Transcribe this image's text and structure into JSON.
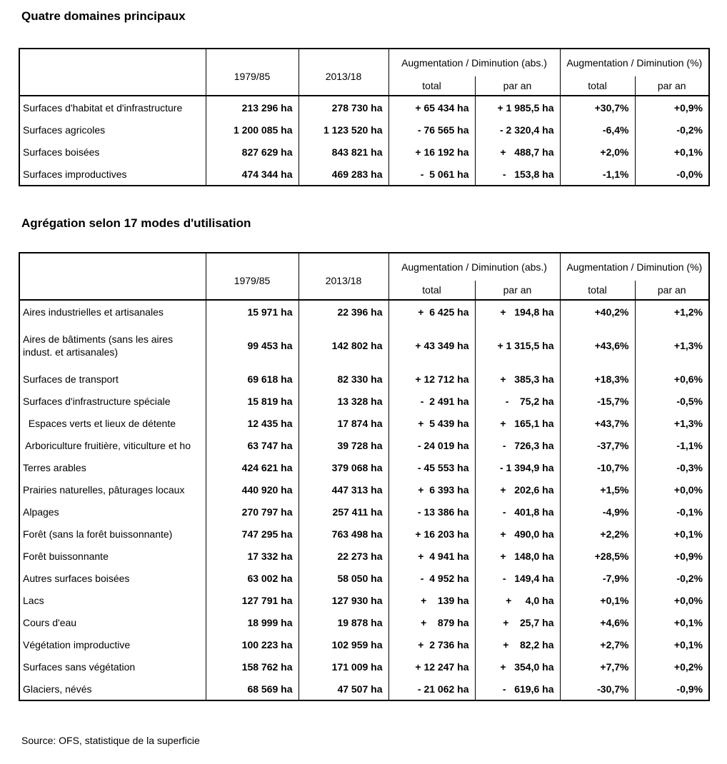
{
  "page": {
    "background": "#ffffff",
    "text_color": "#000000",
    "border_color": "#000000"
  },
  "sections": [
    {
      "title": "Quatre domaines principaux",
      "table": {
        "header": {
          "period_1": "1979/85",
          "period_2": "2013/18",
          "group_abs": "Augmentation / Diminution (abs.)",
          "group_pct": "Augmentation / Diminution (%)",
          "sub_total": "total",
          "sub_per_year": "par an"
        },
        "rows": [
          {
            "label": "Surfaces d'habitat et d'infrastructure",
            "v_1979_85": "213 296 ha",
            "v_2013_18": "278 730 ha",
            "abs_total": "+ 65 434 ha",
            "abs_per_year": "+ 1 985,5 ha",
            "pct_total": "+30,7%",
            "pct_per_year": "+0,9%"
          },
          {
            "label": "Surfaces agricoles",
            "v_1979_85": "1 200 085 ha",
            "v_2013_18": "1 123 520 ha",
            "abs_total": "- 76 565 ha",
            "abs_per_year": "- 2 320,4 ha",
            "pct_total": "-6,4%",
            "pct_per_year": "-0,2%"
          },
          {
            "label": "Surfaces boisées",
            "v_1979_85": "827 629 ha",
            "v_2013_18": "843 821 ha",
            "abs_total": "+ 16 192 ha",
            "abs_per_year": "+   488,7 ha",
            "pct_total": "+2,0%",
            "pct_per_year": "+0,1%"
          },
          {
            "label": "Surfaces improductives",
            "v_1979_85": "474 344 ha",
            "v_2013_18": "469 283 ha",
            "abs_total": "-  5 061 ha",
            "abs_per_year": "-   153,8 ha",
            "pct_total": "-1,1%",
            "pct_per_year": "-0,0%"
          }
        ]
      }
    },
    {
      "title": "Agrégation selon 17 modes d'utilisation",
      "table": {
        "header": {
          "period_1": "1979/85",
          "period_2": "2013/18",
          "group_abs": "Augmentation / Diminution (abs.)",
          "group_pct": "Augmentation / Diminution (%)",
          "sub_total": "total",
          "sub_per_year": "par an"
        },
        "rows": [
          {
            "label": "Aires industrielles et artisanales",
            "v_1979_85": "15 971 ha",
            "v_2013_18": "22 396 ha",
            "abs_total": "+  6 425 ha",
            "abs_per_year": "+   194,8 ha",
            "pct_total": "+40,2%",
            "pct_per_year": "+1,2%"
          },
          {
            "label": "Aires de bâtiments (sans les aires\nindust. et artisanales)",
            "v_1979_85": "99 453 ha",
            "v_2013_18": "142 802 ha",
            "abs_total": "+ 43 349 ha",
            "abs_per_year": "+ 1 315,5 ha",
            "pct_total": "+43,6%",
            "pct_per_year": "+1,3%"
          },
          {
            "label": "Surfaces de transport",
            "v_1979_85": "69 618 ha",
            "v_2013_18": "82 330 ha",
            "abs_total": "+ 12 712 ha",
            "abs_per_year": "+   385,3 ha",
            "pct_total": "+18,3%",
            "pct_per_year": "+0,6%"
          },
          {
            "label": "Surfaces d'infrastructure spéciale",
            "v_1979_85": "15 819 ha",
            "v_2013_18": "13 328 ha",
            "abs_total": "-  2 491 ha",
            "abs_per_year": "-    75,2 ha",
            "pct_total": "-15,7%",
            "pct_per_year": "-0,5%"
          },
          {
            "label": "  Espaces verts et lieux de détente",
            "v_1979_85": "12 435 ha",
            "v_2013_18": "17 874 ha",
            "abs_total": "+  5 439 ha",
            "abs_per_year": "+   165,1 ha",
            "pct_total": "+43,7%",
            "pct_per_year": "+1,3%"
          },
          {
            "label": " Arboriculture fruitière, viticulture et ho",
            "v_1979_85": "63 747 ha",
            "v_2013_18": "39 728 ha",
            "abs_total": "- 24 019 ha",
            "abs_per_year": "-   726,3 ha",
            "pct_total": "-37,7%",
            "pct_per_year": "-1,1%"
          },
          {
            "label": "Terres arables",
            "v_1979_85": "424 621 ha",
            "v_2013_18": "379 068 ha",
            "abs_total": "- 45 553 ha",
            "abs_per_year": "- 1 394,9 ha",
            "pct_total": "-10,7%",
            "pct_per_year": "-0,3%"
          },
          {
            "label": "Prairies naturelles, pâturages locaux",
            "v_1979_85": "440 920 ha",
            "v_2013_18": "447 313 ha",
            "abs_total": "+  6 393 ha",
            "abs_per_year": "+   202,6 ha",
            "pct_total": "+1,5%",
            "pct_per_year": "+0,0%"
          },
          {
            "label": "Alpages",
            "v_1979_85": "270 797 ha",
            "v_2013_18": "257 411 ha",
            "abs_total": "- 13 386 ha",
            "abs_per_year": "-   401,8 ha",
            "pct_total": "-4,9%",
            "pct_per_year": "-0,1%"
          },
          {
            "label": "Forêt (sans la forêt buissonnante)",
            "v_1979_85": "747 295 ha",
            "v_2013_18": "763 498 ha",
            "abs_total": "+ 16 203 ha",
            "abs_per_year": "+   490,0 ha",
            "pct_total": "+2,2%",
            "pct_per_year": "+0,1%"
          },
          {
            "label": "Forêt buissonnante",
            "v_1979_85": "17 332 ha",
            "v_2013_18": "22 273 ha",
            "abs_total": "+  4 941 ha",
            "abs_per_year": "+   148,0 ha",
            "pct_total": "+28,5%",
            "pct_per_year": "+0,9%"
          },
          {
            "label": "Autres surfaces boisées",
            "v_1979_85": "63 002 ha",
            "v_2013_18": "58 050 ha",
            "abs_total": "-  4 952 ha",
            "abs_per_year": "-   149,4 ha",
            "pct_total": "-7,9%",
            "pct_per_year": "-0,2%"
          },
          {
            "label": "Lacs",
            "v_1979_85": "127 791 ha",
            "v_2013_18": "127 930 ha",
            "abs_total": "+    139 ha",
            "abs_per_year": "+     4,0 ha",
            "pct_total": "+0,1%",
            "pct_per_year": "+0,0%"
          },
          {
            "label": "Cours d'eau",
            "v_1979_85": "18 999 ha",
            "v_2013_18": "19 878 ha",
            "abs_total": "+    879 ha",
            "abs_per_year": "+    25,7 ha",
            "pct_total": "+4,6%",
            "pct_per_year": "+0,1%"
          },
          {
            "label": "Végétation improductive",
            "v_1979_85": "100 223 ha",
            "v_2013_18": "102 959 ha",
            "abs_total": "+  2 736 ha",
            "abs_per_year": "+    82,2 ha",
            "pct_total": "+2,7%",
            "pct_per_year": "+0,1%"
          },
          {
            "label": "Surfaces sans végétation",
            "v_1979_85": "158 762 ha",
            "v_2013_18": "171 009 ha",
            "abs_total": "+ 12 247 ha",
            "abs_per_year": "+   354,0 ha",
            "pct_total": "+7,7%",
            "pct_per_year": "+0,2%"
          },
          {
            "label": "Glaciers, névés",
            "v_1979_85": "68 569 ha",
            "v_2013_18": "47 507 ha",
            "abs_total": "- 21 062 ha",
            "abs_per_year": "-   619,6 ha",
            "pct_total": "-30,7%",
            "pct_per_year": "-0,9%"
          }
        ]
      }
    }
  ],
  "source_note": "Source: OFS, statistique de la superficie"
}
